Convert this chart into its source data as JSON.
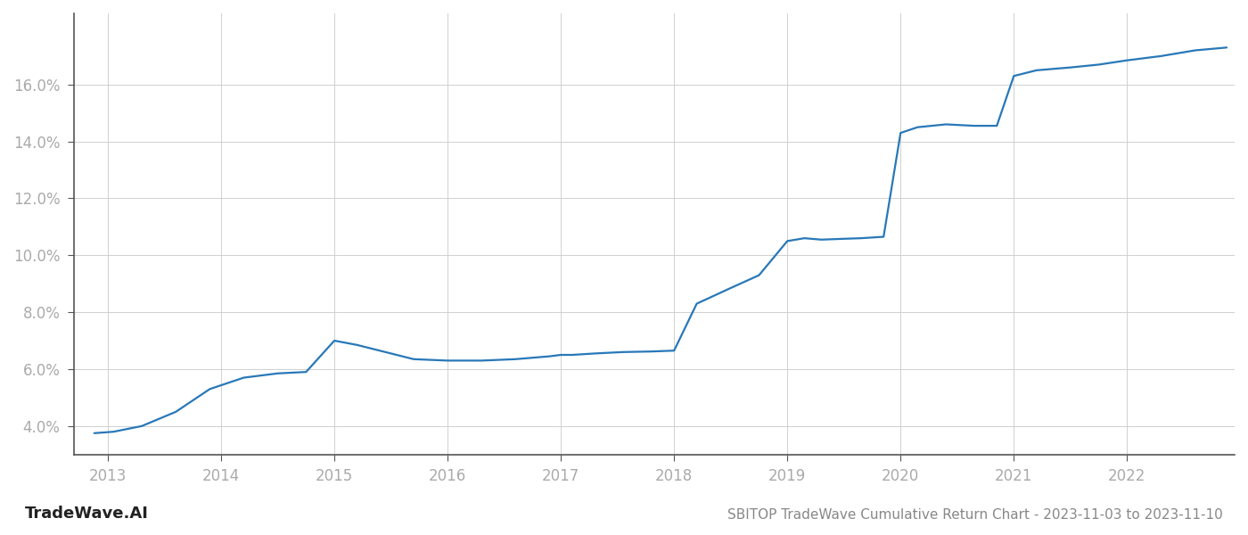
{
  "title": "SBITOP TradeWave Cumulative Return Chart - 2023-11-03 to 2023-11-10",
  "watermark": "TradeWave.AI",
  "line_color": "#2878b8",
  "background_color": "#ffffff",
  "grid_color": "#d0d0d0",
  "x_values": [
    2012.88,
    2013.05,
    2013.3,
    2013.6,
    2013.9,
    2014.2,
    2014.5,
    2014.75,
    2015.0,
    2015.2,
    2015.45,
    2015.7,
    2016.0,
    2016.3,
    2016.6,
    2016.9,
    2017.0,
    2017.1,
    2017.3,
    2017.55,
    2017.8,
    2018.0,
    2018.2,
    2018.5,
    2018.75,
    2019.0,
    2019.15,
    2019.3,
    2019.5,
    2019.65,
    2019.85,
    2020.0,
    2020.15,
    2020.4,
    2020.65,
    2020.85,
    2021.0,
    2021.2,
    2021.5,
    2021.75,
    2022.0,
    2022.3,
    2022.6,
    2022.88
  ],
  "y_values": [
    3.75,
    3.8,
    4.0,
    4.5,
    5.3,
    5.7,
    5.85,
    5.9,
    7.0,
    6.85,
    6.6,
    6.35,
    6.3,
    6.3,
    6.35,
    6.45,
    6.5,
    6.5,
    6.55,
    6.6,
    6.62,
    6.65,
    8.3,
    8.85,
    9.3,
    10.5,
    10.6,
    10.55,
    10.58,
    10.6,
    10.65,
    14.3,
    14.5,
    14.6,
    14.55,
    14.55,
    16.3,
    16.5,
    16.6,
    16.7,
    16.85,
    17.0,
    17.2,
    17.3
  ],
  "xlim": [
    2012.7,
    2022.95
  ],
  "ylim": [
    3.0,
    18.5
  ],
  "yticks": [
    4.0,
    6.0,
    8.0,
    10.0,
    12.0,
    14.0,
    16.0
  ],
  "xticks": [
    2013,
    2014,
    2015,
    2016,
    2017,
    2018,
    2019,
    2020,
    2021,
    2022
  ],
  "tick_label_color": "#aaaaaa",
  "axis_color": "#555555",
  "line_width": 1.6,
  "title_fontsize": 11,
  "tick_fontsize": 12,
  "watermark_fontsize": 13
}
